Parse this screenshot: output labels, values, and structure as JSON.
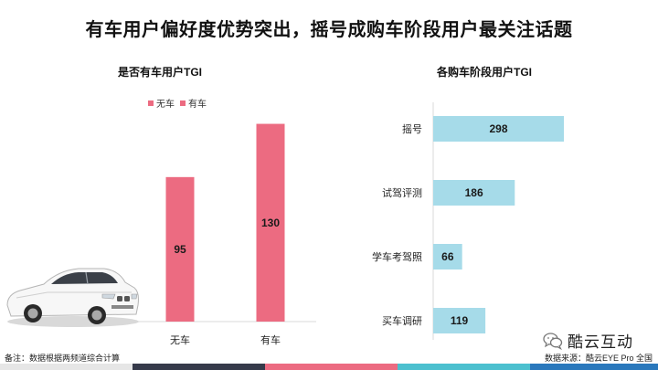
{
  "slide": {
    "title": "有车用户偏好度优势突出，摇号成购车阶段用户最关注话题",
    "note": "备注：数据根据两频道综合计算",
    "source": "数据来源：酷云EYE Pro 全国",
    "logo_text": "酷云互动",
    "logo_icon": "wechat-icon",
    "car_image": "car-image",
    "colors": {
      "pink": "#ec6b81",
      "light_blue": "#a6dbe9",
      "stripe": [
        "#e6e6e6",
        "#363a4a",
        "#ec6b81",
        "#4cc0cf",
        "#2a78bc"
      ]
    }
  },
  "chart_data": [
    {
      "type": "bar",
      "title": "是否有车用户TGI",
      "categories": [
        "无车",
        "有车"
      ],
      "values": [
        95,
        130
      ],
      "legend": [
        "无车",
        "有车"
      ],
      "legend_placement": "top",
      "color": "#ec6b81",
      "data_labels": true,
      "grid": false
    },
    {
      "type": "bar",
      "orientation": "horizontal",
      "title": "各购车阶段用户TGI",
      "categories": [
        "摇号",
        "试驾评测",
        "学车考驾照",
        "买车调研"
      ],
      "values": [
        298,
        186,
        66,
        119
      ],
      "color": "#a6dbe9",
      "data_labels": true,
      "grid": false
    }
  ]
}
